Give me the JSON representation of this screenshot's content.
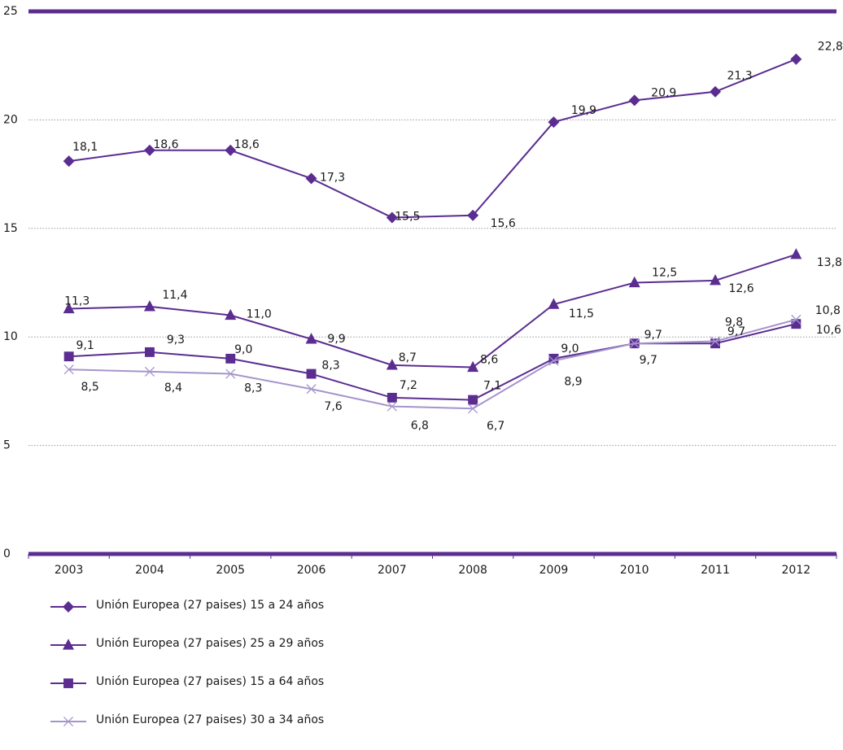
{
  "chart_data": {
    "type": "line",
    "x": [
      "2003",
      "2004",
      "2005",
      "2006",
      "2007",
      "2008",
      "2009",
      "2010",
      "2011",
      "2012"
    ],
    "ylim": [
      0,
      25
    ],
    "yticks": [
      "0",
      "5",
      "10",
      "15",
      "20",
      "25"
    ],
    "grid": true,
    "legend_position": "bottom-left",
    "series": [
      {
        "name": "Unión Europea (27 paises) 15 a 24 años",
        "marker": "diamond",
        "color": "#5b2d91",
        "values": [
          18.1,
          18.6,
          18.6,
          17.3,
          15.5,
          15.6,
          19.9,
          20.9,
          21.3,
          22.8
        ],
        "labels": [
          "18,1",
          "18,6",
          "18,6",
          "17,3",
          "15,5",
          "15,6",
          "19,9",
          "20,9",
          "21,3",
          "22,8"
        ]
      },
      {
        "name": "Unión Europea (27 paises) 25 a 29 años",
        "marker": "triangle",
        "color": "#5b2d91",
        "values": [
          11.3,
          11.4,
          11.0,
          9.9,
          8.7,
          8.6,
          11.5,
          12.5,
          12.6,
          13.8
        ],
        "labels": [
          "11,3",
          "11,4",
          "11,0",
          "9,9",
          "8,7",
          "8,6",
          "11,5",
          "12,5",
          "12,6",
          "13,8"
        ]
      },
      {
        "name": "Unión Europea (27 paises) 15 a 64 años",
        "marker": "square",
        "color": "#5b2d91",
        "values": [
          9.1,
          9.3,
          9.0,
          8.3,
          7.2,
          7.1,
          9.0,
          9.7,
          9.7,
          10.6
        ],
        "labels": [
          "9,1",
          "9,3",
          "9,0",
          "8,3",
          "7,2",
          "7,1",
          "9,0",
          "9,7",
          "9,7",
          "10,6"
        ]
      },
      {
        "name": "Unión Europea (27 paises) 30 a 34 años",
        "marker": "x",
        "color": "#a595cc",
        "values": [
          8.5,
          8.4,
          8.3,
          7.6,
          6.8,
          6.7,
          8.9,
          9.7,
          9.8,
          10.8
        ],
        "labels": [
          "8,5",
          "8,4",
          "8,3",
          "7,6",
          "6,8",
          "6,7",
          "8,9",
          "9,7",
          "9,8",
          "10,8"
        ]
      }
    ]
  }
}
